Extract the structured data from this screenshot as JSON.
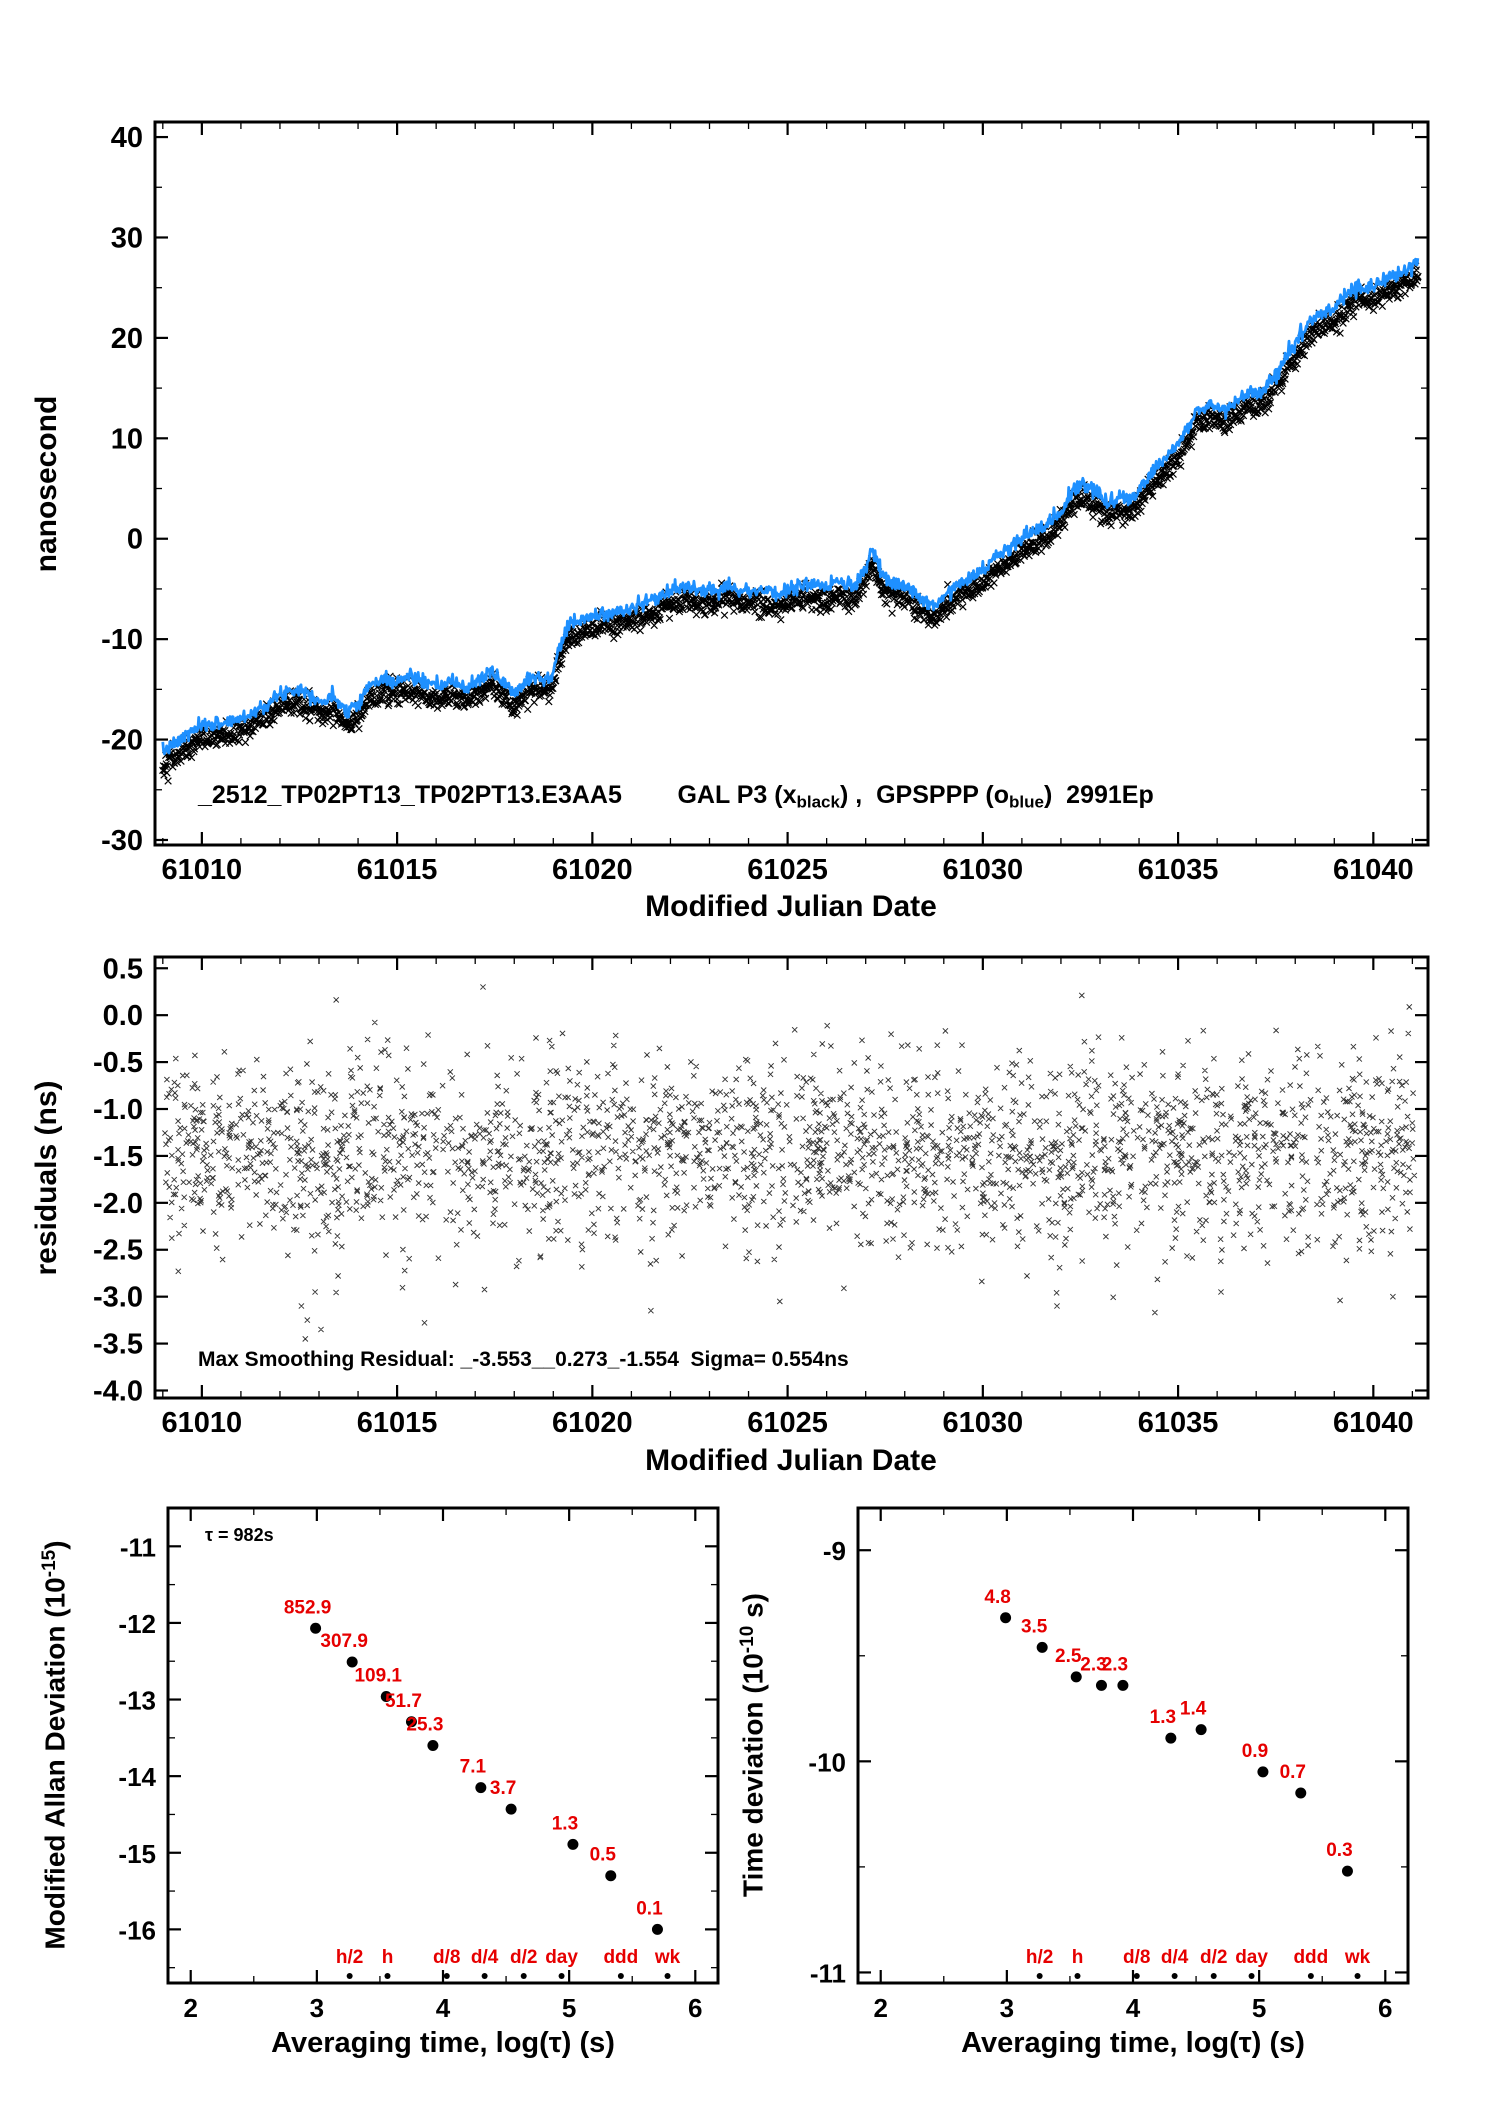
{
  "colors": {
    "black": "#000000",
    "blue": "#1E90FF",
    "red": "#e60000",
    "background": "#ffffff"
  },
  "chart_data": [
    {
      "id": "phase",
      "type": "scatter",
      "title_segments": [
        {
          "t": "_2512_TP02PT13_TP02PT13.E3AA5"
        },
        {
          "t": "        "
        },
        {
          "t": "GAL P3 (x"
        },
        {
          "t": "black",
          "sub": true
        },
        {
          "t": ") ,  GPSPPP (o"
        },
        {
          "t": "blue",
          "sub": true
        },
        {
          "t": ")  2991Ep"
        }
      ],
      "xlabel": "Modified Julian Date",
      "ylabel": "nanosecond",
      "xlim": [
        61008.8,
        61041.4
      ],
      "ylim": [
        -30.5,
        41.5
      ],
      "xticks": {
        "values": [
          61010,
          61015,
          61020,
          61025,
          61030,
          61035,
          61040
        ],
        "labels": [
          "61010",
          "61015",
          "61020",
          "61025",
          "61030",
          "61035",
          "61040"
        ]
      },
      "yticks": {
        "values": [
          40,
          30,
          20,
          10,
          0,
          -10,
          -20,
          -30
        ],
        "labels": [
          "40",
          "30",
          "20",
          "10",
          "0",
          "-10",
          "-20",
          "-30"
        ]
      },
      "x_minor_step": 1,
      "y_minor_step": 5,
      "series": [
        {
          "name": "GAL P3 black x",
          "marker": "x",
          "color": "#000000",
          "noise": 0.6,
          "step": 0.015,
          "offset": 0,
          "seed": 42
        },
        {
          "name": "GPSPPP blue o",
          "marker": "line",
          "color": "#1E90FF",
          "noise": 0.35,
          "step": 0.02,
          "offset": 1.3,
          "seed": 7
        }
      ],
      "waypoints": [
        [
          61009.0,
          -22.5
        ],
        [
          61009.4,
          -21.5
        ],
        [
          61009.8,
          -20.3
        ],
        [
          61010.2,
          -19.8
        ],
        [
          61010.6,
          -19.6
        ],
        [
          61011.0,
          -19.2
        ],
        [
          61011.4,
          -18.4
        ],
        [
          61011.8,
          -17.4
        ],
        [
          61012.2,
          -16.4
        ],
        [
          61012.5,
          -16.2
        ],
        [
          61012.8,
          -16.8
        ],
        [
          61013.1,
          -17.6
        ],
        [
          61013.4,
          -17.0
        ],
        [
          61013.7,
          -18.4
        ],
        [
          61014.0,
          -17.6
        ],
        [
          61014.3,
          -15.9
        ],
        [
          61014.7,
          -15.2
        ],
        [
          61015.0,
          -15.6
        ],
        [
          61015.3,
          -14.9
        ],
        [
          61015.7,
          -15.6
        ],
        [
          61016.0,
          -16.1
        ],
        [
          61016.4,
          -15.5
        ],
        [
          61016.8,
          -16.2
        ],
        [
          61017.1,
          -15.3
        ],
        [
          61017.4,
          -14.6
        ],
        [
          61017.7,
          -15.4
        ],
        [
          61018.0,
          -16.7
        ],
        [
          61018.3,
          -15.3
        ],
        [
          61018.6,
          -14.9
        ],
        [
          61018.9,
          -15.6
        ],
        [
          61019.1,
          -12.8
        ],
        [
          61019.4,
          -9.9
        ],
        [
          61019.8,
          -9.3
        ],
        [
          61020.2,
          -8.8
        ],
        [
          61020.7,
          -8.6
        ],
        [
          61021.2,
          -7.9
        ],
        [
          61021.7,
          -7.1
        ],
        [
          61022.1,
          -6.4
        ],
        [
          61022.4,
          -5.9
        ],
        [
          61022.7,
          -6.7
        ],
        [
          61023.1,
          -6.2
        ],
        [
          61023.5,
          -5.9
        ],
        [
          61023.9,
          -6.6
        ],
        [
          61024.3,
          -6.3
        ],
        [
          61024.7,
          -6.9
        ],
        [
          61025.1,
          -6.2
        ],
        [
          61025.5,
          -5.7
        ],
        [
          61025.9,
          -6.3
        ],
        [
          61026.3,
          -5.6
        ],
        [
          61026.7,
          -6.1
        ],
        [
          61027.0,
          -4.3
        ],
        [
          61027.15,
          -2.5
        ],
        [
          61027.4,
          -4.8
        ],
        [
          61027.7,
          -5.6
        ],
        [
          61028.1,
          -6.2
        ],
        [
          61028.5,
          -7.6
        ],
        [
          61028.8,
          -7.9
        ],
        [
          61029.1,
          -6.6
        ],
        [
          61029.4,
          -5.6
        ],
        [
          61029.7,
          -5.0
        ],
        [
          61030.1,
          -4.1
        ],
        [
          61030.5,
          -2.7
        ],
        [
          61030.9,
          -1.6
        ],
        [
          61031.3,
          -0.6
        ],
        [
          61031.7,
          0.4
        ],
        [
          61032.0,
          1.4
        ],
        [
          61032.3,
          3.4
        ],
        [
          61032.6,
          4.3
        ],
        [
          61032.9,
          3.3
        ],
        [
          61033.2,
          2.3
        ],
        [
          61033.5,
          2.9
        ],
        [
          61033.8,
          2.6
        ],
        [
          61034.1,
          4.2
        ],
        [
          61034.5,
          6.1
        ],
        [
          61034.9,
          7.7
        ],
        [
          61035.2,
          9.4
        ],
        [
          61035.5,
          11.4
        ],
        [
          61035.8,
          12.1
        ],
        [
          61036.2,
          11.6
        ],
        [
          61036.5,
          12.4
        ],
        [
          61036.8,
          13.4
        ],
        [
          61037.1,
          13.1
        ],
        [
          61037.4,
          14.6
        ],
        [
          61037.7,
          16.4
        ],
        [
          61038.0,
          18.1
        ],
        [
          61038.4,
          20.4
        ],
        [
          61038.7,
          21.1
        ],
        [
          61039.0,
          21.6
        ],
        [
          61039.3,
          22.9
        ],
        [
          61039.6,
          23.9
        ],
        [
          61040.0,
          23.6
        ],
        [
          61040.4,
          24.8
        ],
        [
          61040.8,
          25.3
        ],
        [
          61041.1,
          26.3
        ]
      ]
    },
    {
      "id": "residuals",
      "type": "scatter",
      "xlabel": "Modified Julian Date",
      "ylabel": "residuals (ns)",
      "annotation": "Max Smoothing Residual: _-3.553__0.273_-1.554  Sigma= 0.554ns",
      "xlim": [
        61008.8,
        61041.4
      ],
      "ylim": [
        -4.08,
        0.62
      ],
      "xticks": {
        "values": [
          61010,
          61015,
          61020,
          61025,
          61030,
          61035,
          61040
        ],
        "labels": [
          "61010",
          "61015",
          "61020",
          "61025",
          "61030",
          "61035",
          "61040"
        ]
      },
      "yticks": {
        "values": [
          0.5,
          0.0,
          -0.5,
          -1.0,
          -1.5,
          -2.0,
          -2.5,
          -3.0,
          -3.5,
          -4.0
        ],
        "labels": [
          "0.5",
          "0.0",
          "-0.5",
          "-1.0",
          "-1.5",
          "-2.0",
          "-2.5",
          "-3.0",
          "-3.5",
          "-4.0"
        ]
      },
      "x_minor_step": 1,
      "scatter": {
        "n": 2400,
        "mean": -1.45,
        "sigma": 0.52,
        "clip": [
          -3.4,
          0.35
        ],
        "seed": 99
      },
      "outliers": [
        [
          61012.55,
          -3.1
        ],
        [
          61012.65,
          -3.45
        ],
        [
          61012.7,
          -3.25
        ],
        [
          61012.9,
          -2.95
        ],
        [
          61013.05,
          -3.35
        ],
        [
          61017.2,
          0.3
        ],
        [
          61021.5,
          -3.15
        ],
        [
          61024.8,
          -3.05
        ],
        [
          61031.9,
          -3.1
        ],
        [
          61036.1,
          -2.95
        ],
        [
          61040.5,
          -3.0
        ]
      ]
    },
    {
      "id": "mdev",
      "type": "scatter",
      "xlabel": "Averaging time, log(τ) (s)",
      "ylabel_segments": [
        {
          "t": "Modified Allan Deviation (10"
        },
        {
          "t": "-15",
          "sup": true
        },
        {
          "t": ")"
        }
      ],
      "tau_note": "τ = 982s",
      "xlim": [
        1.82,
        6.18
      ],
      "ylim": [
        -16.7,
        -10.5
      ],
      "xticks": {
        "values": [
          2,
          3,
          4,
          5,
          6
        ],
        "labels": [
          "2",
          "3",
          "4",
          "5",
          "6"
        ]
      },
      "yticks": {
        "values": [
          -11,
          -12,
          -13,
          -14,
          -15,
          -16
        ],
        "labels": [
          "-11",
          "-12",
          "-13",
          "-14",
          "-15",
          "-16"
        ]
      },
      "x_minor_step": 0.5,
      "y_minor_step": 0.5,
      "points": {
        "x": [
          2.99,
          3.28,
          3.55,
          3.75,
          3.92,
          4.3,
          4.54,
          5.03,
          5.33,
          5.7
        ],
        "y": [
          -12.07,
          -12.51,
          -12.96,
          -13.29,
          -13.6,
          -14.15,
          -14.43,
          -14.89,
          -15.3,
          -16.0
        ],
        "labels": [
          "852.9",
          "307.9",
          "109.1",
          "51.7",
          "25.3",
          "7.1",
          "3.7",
          "1.3",
          "0.5",
          "0.1"
        ]
      },
      "time_ticks": {
        "labels": [
          "h/2",
          "h",
          "d/8",
          "d/4",
          "d/2",
          "day",
          "ddd",
          "wk"
        ],
        "x": [
          3.26,
          3.56,
          4.03,
          4.33,
          4.64,
          4.94,
          5.41,
          5.78
        ]
      },
      "accent": "#e60000"
    },
    {
      "id": "tdev",
      "type": "scatter",
      "xlabel": "Averaging time, log(τ) (s)",
      "ylabel_segments": [
        {
          "t": "Time deviation (10"
        },
        {
          "t": "-10",
          "sup": true
        },
        {
          "t": " s)"
        }
      ],
      "xlim": [
        1.82,
        6.18
      ],
      "ylim": [
        -11.05,
        -8.8
      ],
      "xticks": {
        "values": [
          2,
          3,
          4,
          5,
          6
        ],
        "labels": [
          "2",
          "3",
          "4",
          "5",
          "6"
        ]
      },
      "yticks": {
        "values": [
          -9,
          -10,
          -11
        ],
        "labels": [
          "-9",
          "-10",
          "-11"
        ]
      },
      "x_minor_step": 0.5,
      "y_minor_step": 0.5,
      "points": {
        "x": [
          2.99,
          3.28,
          3.55,
          3.75,
          3.92,
          4.3,
          4.54,
          5.03,
          5.33,
          5.7
        ],
        "y": [
          -9.32,
          -9.46,
          -9.6,
          -9.64,
          -9.64,
          -9.89,
          -9.85,
          -10.05,
          -10.15,
          -10.52
        ],
        "labels": [
          "4.8",
          "3.5",
          "2.5",
          "2.3",
          "2.3",
          "1.3",
          "1.4",
          "0.9",
          "0.7",
          "0.3"
        ]
      },
      "time_ticks": {
        "labels": [
          "h/2",
          "h",
          "d/8",
          "d/4",
          "d/2",
          "day",
          "ddd",
          "wk"
        ],
        "x": [
          3.26,
          3.56,
          4.03,
          4.33,
          4.64,
          4.94,
          5.41,
          5.78
        ]
      },
      "accent": "#e60000"
    }
  ]
}
